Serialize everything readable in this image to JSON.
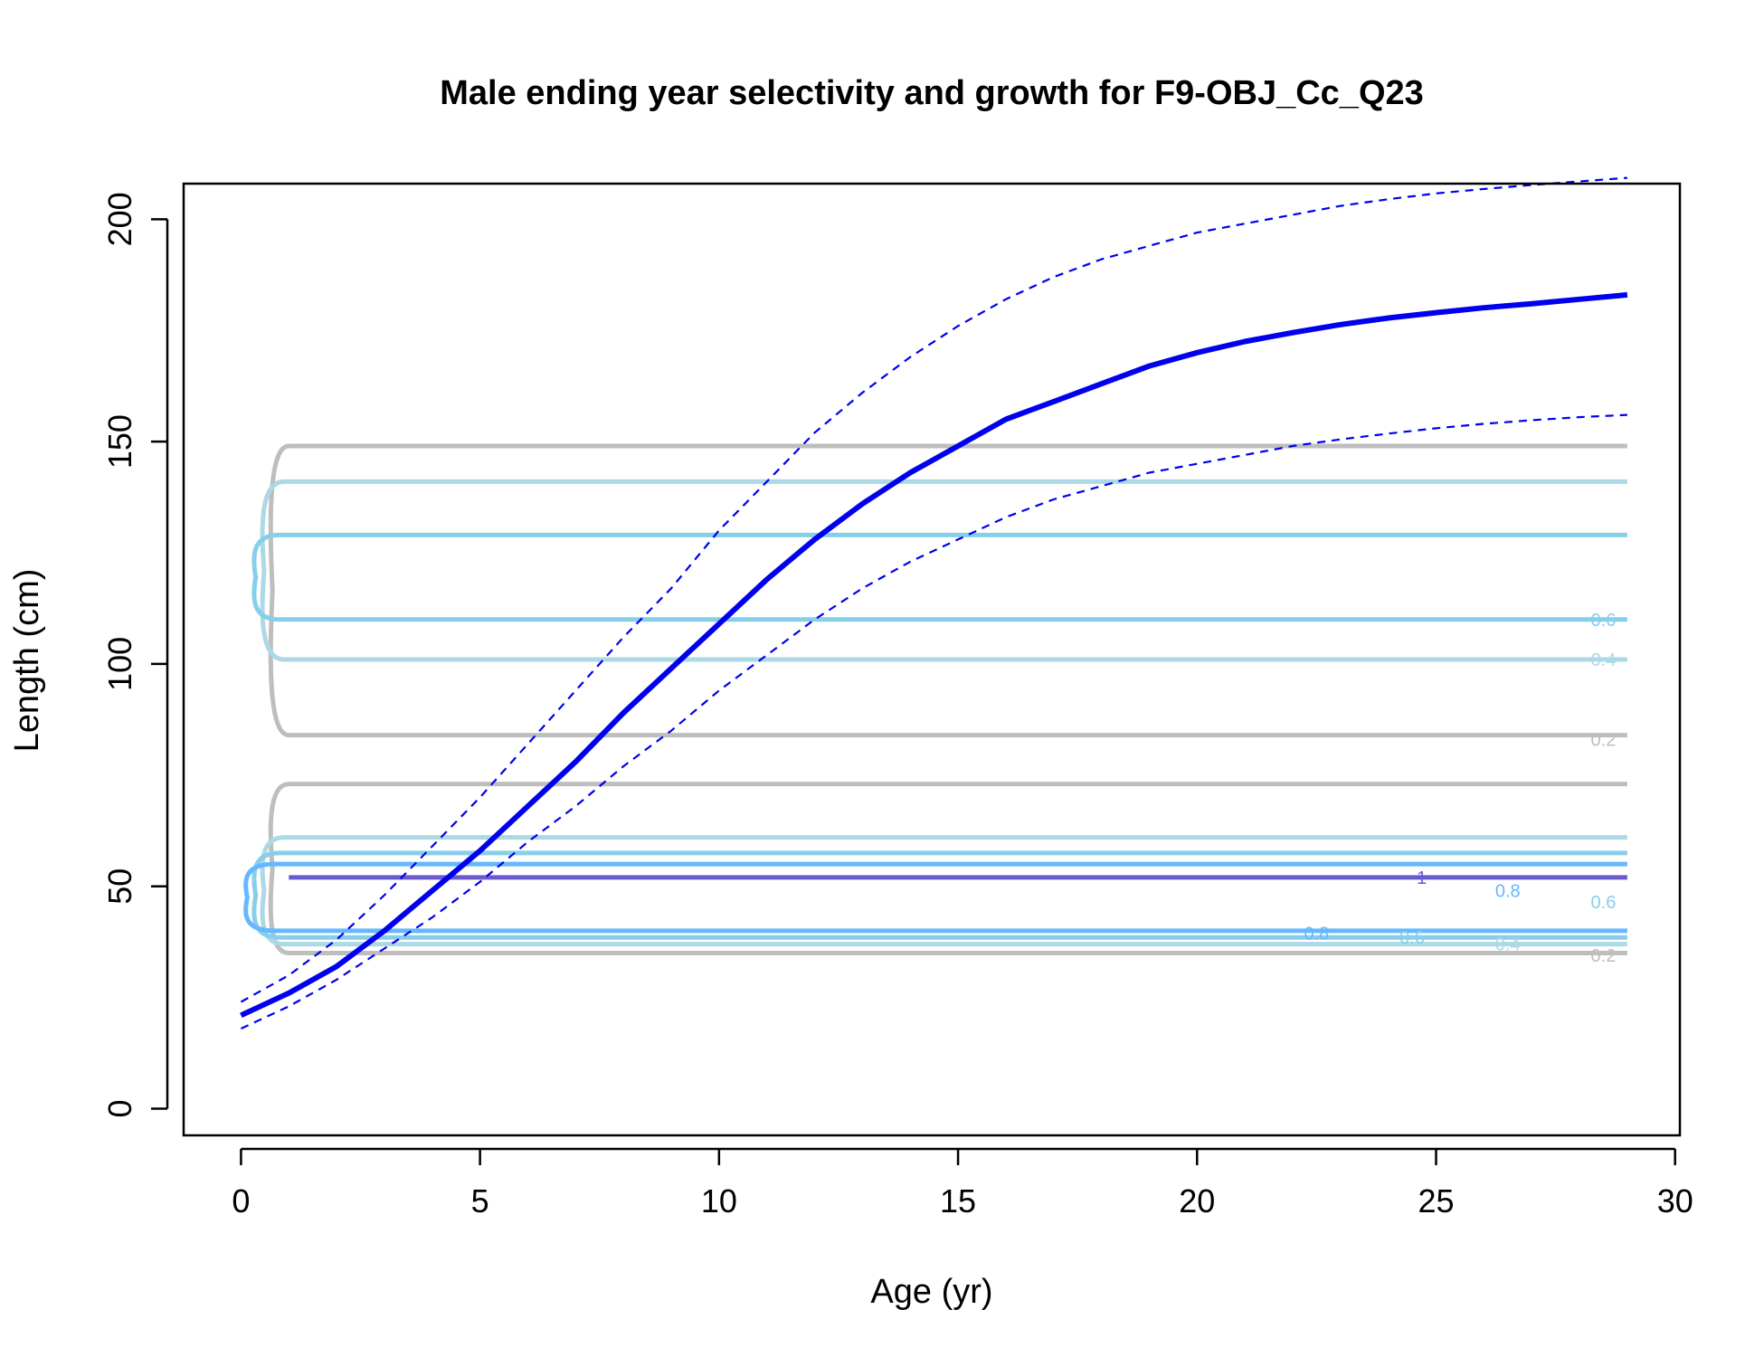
{
  "chart_data": {
    "type": "line",
    "title": "Male ending year selectivity and growth for F9-OBJ_Cc_Q23",
    "xlabel": "Age (yr)",
    "ylabel": "Length (cm)",
    "xlim": [
      -1.2,
      30.1
    ],
    "ylim": [
      -6,
      208
    ],
    "x_ticks": [
      0,
      5,
      10,
      15,
      20,
      25,
      30
    ],
    "y_ticks": [
      0,
      50,
      100,
      150,
      200
    ],
    "grid": false,
    "series": [
      {
        "style": "solid",
        "color": "#0000ee",
        "x": [
          0,
          1,
          2,
          3,
          4,
          5,
          6,
          7,
          8,
          9,
          10,
          11,
          12,
          13,
          14,
          15,
          16,
          17,
          18,
          19,
          20,
          21,
          22,
          23,
          24,
          25,
          26,
          27,
          28,
          29
        ],
        "y": [
          21,
          26,
          32,
          40,
          49,
          58,
          68,
          78,
          89,
          99,
          109,
          119,
          128,
          136,
          143,
          149,
          155,
          159,
          163,
          167,
          170,
          172.5,
          174.5,
          176.3,
          177.8,
          179,
          180.1,
          181,
          182,
          183
        ]
      },
      {
        "style": "dashed",
        "color": "#0000ee",
        "x": [
          0,
          1,
          2,
          3,
          4,
          5,
          6,
          7,
          8,
          9,
          10,
          11,
          12,
          13,
          14,
          15,
          16,
          17,
          18,
          19,
          20,
          21,
          22,
          23,
          24,
          25,
          26,
          27,
          28,
          29
        ],
        "y": [
          24,
          30,
          38,
          48,
          59,
          70,
          82,
          94,
          106,
          117,
          130,
          141,
          152,
          161,
          169,
          176,
          182,
          187,
          191,
          194,
          197,
          199,
          201,
          203,
          204.5,
          205.8,
          206.8,
          207.7,
          208.5,
          209.3
        ]
      },
      {
        "style": "dashed",
        "color": "#0000ee",
        "x": [
          0,
          1,
          2,
          3,
          4,
          5,
          6,
          7,
          8,
          9,
          10,
          11,
          12,
          13,
          14,
          15,
          16,
          17,
          18,
          19,
          20,
          21,
          22,
          23,
          24,
          25,
          26,
          27,
          28,
          29
        ],
        "y": [
          18,
          23,
          29,
          36,
          43,
          51,
          60,
          68,
          77,
          85,
          94,
          102,
          110,
          117,
          123,
          128,
          133,
          137,
          140,
          143,
          145,
          147,
          149,
          150.5,
          151.8,
          153,
          154,
          154.8,
          155.5,
          156
        ]
      }
    ],
    "contours": [
      {
        "level": "0.2",
        "color": "#bebebe",
        "y": [
          35,
          73
        ],
        "x_start": 1.0
      },
      {
        "level": "0.4",
        "color": "#add8e6",
        "y": [
          37,
          61
        ],
        "x_start": 0.9
      },
      {
        "level": "0.6",
        "color": "#87ceeb",
        "y": [
          38.5,
          57.5
        ],
        "x_start": 0.8
      },
      {
        "level": "0.8",
        "color": "#63b8ff",
        "y": [
          40,
          55
        ],
        "x_start": 0.7
      },
      {
        "level": "1",
        "color": "#6a5acd",
        "y": [
          52,
          52
        ],
        "x_start": 1.0
      },
      {
        "level": "0.2",
        "color": "#bebebe",
        "y": [
          84,
          149
        ],
        "x_start": 1.0
      },
      {
        "level": "0.4",
        "color": "#add8e6",
        "y": [
          101,
          141
        ],
        "x_start": 0.9
      },
      {
        "level": "0.6",
        "color": "#87ceeb",
        "y": [
          110,
          129
        ],
        "x_start": 0.8
      }
    ],
    "contour_labels": [
      {
        "text": "0.6",
        "color": "#87ceeb",
        "x": 28.5,
        "y": 110
      },
      {
        "text": "0.4",
        "color": "#add8e6",
        "x": 28.5,
        "y": 101
      },
      {
        "text": "0.2",
        "color": "#bebebe",
        "x": 28.5,
        "y": 83
      },
      {
        "text": "1",
        "color": "#6a5acd",
        "x": 24.7,
        "y": 52
      },
      {
        "text": "0.8",
        "color": "#63b8ff",
        "x": 26.5,
        "y": 49
      },
      {
        "text": "0.6",
        "color": "#87ceeb",
        "x": 28.5,
        "y": 46.5
      },
      {
        "text": "0.8",
        "color": "#63b8ff",
        "x": 22.5,
        "y": 39.5
      },
      {
        "text": "0.6",
        "color": "#87ceeb",
        "x": 24.5,
        "y": 38.5
      },
      {
        "text": "0.4",
        "color": "#add8e6",
        "x": 26.5,
        "y": 37
      },
      {
        "text": "0.2",
        "color": "#bebebe",
        "x": 28.5,
        "y": 34.5
      }
    ]
  }
}
